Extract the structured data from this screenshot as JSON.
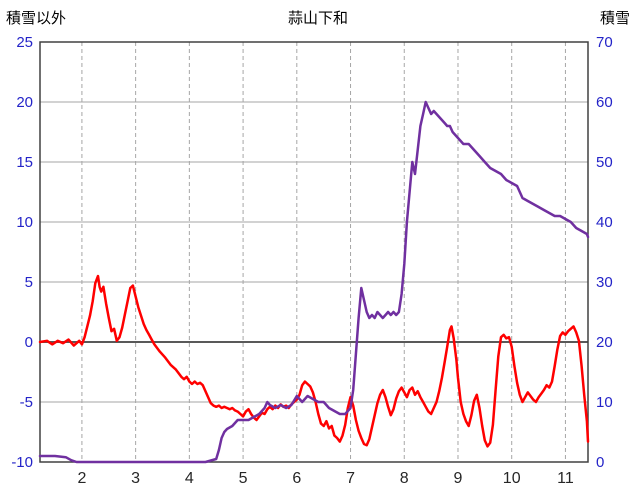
{
  "chart_data": {
    "type": "line",
    "title": "蒜山下和",
    "left_axis_title": "積雪以外",
    "right_axis_title": "積雪",
    "x_range": [
      1.22,
      11.42
    ],
    "x_ticks": [
      2,
      3,
      4,
      5,
      6,
      7,
      8,
      9,
      10,
      11
    ],
    "left_axis": {
      "range": [
        -10,
        25
      ],
      "ticks": [
        -10,
        -5,
        0,
        5,
        10,
        15,
        20,
        25
      ]
    },
    "right_axis": {
      "range": [
        0,
        70
      ],
      "ticks": [
        0,
        10,
        20,
        30,
        40,
        50,
        60,
        70
      ]
    },
    "grid": {
      "horizontal": "solid",
      "vertical": "dashed",
      "zero_line_emphasis": true
    },
    "legend": "none",
    "colors": {
      "temperature": "#FF0000",
      "snow": "#7030A0",
      "grid": "#A6A6A6",
      "zero_line": "#595959",
      "border": "#404040",
      "tick_label": "#2424C8",
      "x_label": "#262626",
      "title": "#000000"
    },
    "series": [
      {
        "name": "積雪以外",
        "axis": "left",
        "color_key": "temperature",
        "points": [
          [
            1.22,
            0
          ],
          [
            1.35,
            0.1
          ],
          [
            1.45,
            -0.2
          ],
          [
            1.55,
            0.1
          ],
          [
            1.65,
            -0.1
          ],
          [
            1.75,
            0.2
          ],
          [
            1.85,
            -0.3
          ],
          [
            1.95,
            0.1
          ],
          [
            2.0,
            -0.2
          ],
          [
            2.05,
            0.4
          ],
          [
            2.1,
            1.3
          ],
          [
            2.15,
            2.2
          ],
          [
            2.2,
            3.4
          ],
          [
            2.25,
            4.9
          ],
          [
            2.3,
            5.5
          ],
          [
            2.33,
            4.6
          ],
          [
            2.36,
            4.2
          ],
          [
            2.4,
            4.6
          ],
          [
            2.45,
            3.2
          ],
          [
            2.5,
            2.0
          ],
          [
            2.55,
            0.9
          ],
          [
            2.6,
            1.1
          ],
          [
            2.65,
            0.1
          ],
          [
            2.7,
            0.4
          ],
          [
            2.75,
            1.2
          ],
          [
            2.8,
            2.3
          ],
          [
            2.85,
            3.4
          ],
          [
            2.9,
            4.5
          ],
          [
            2.95,
            4.7
          ],
          [
            3.0,
            3.8
          ],
          [
            3.05,
            2.9
          ],
          [
            3.1,
            2.2
          ],
          [
            3.15,
            1.5
          ],
          [
            3.2,
            1.0
          ],
          [
            3.25,
            0.6
          ],
          [
            3.3,
            0.2
          ],
          [
            3.35,
            -0.2
          ],
          [
            3.45,
            -0.8
          ],
          [
            3.55,
            -1.3
          ],
          [
            3.65,
            -1.9
          ],
          [
            3.75,
            -2.3
          ],
          [
            3.85,
            -2.9
          ],
          [
            3.9,
            -3.1
          ],
          [
            3.95,
            -2.9
          ],
          [
            4.0,
            -3.3
          ],
          [
            4.05,
            -3.5
          ],
          [
            4.1,
            -3.3
          ],
          [
            4.15,
            -3.5
          ],
          [
            4.2,
            -3.4
          ],
          [
            4.25,
            -3.6
          ],
          [
            4.4,
            -5.1
          ],
          [
            4.45,
            -5.3
          ],
          [
            4.5,
            -5.4
          ],
          [
            4.55,
            -5.3
          ],
          [
            4.6,
            -5.5
          ],
          [
            4.65,
            -5.4
          ],
          [
            4.7,
            -5.5
          ],
          [
            4.75,
            -5.6
          ],
          [
            4.8,
            -5.5
          ],
          [
            4.85,
            -5.7
          ],
          [
            4.9,
            -5.8
          ],
          [
            4.95,
            -6.0
          ],
          [
            5.0,
            -6.2
          ],
          [
            5.05,
            -5.8
          ],
          [
            5.1,
            -5.6
          ],
          [
            5.15,
            -6.0
          ],
          [
            5.2,
            -6.3
          ],
          [
            5.25,
            -6.5
          ],
          [
            5.3,
            -6.2
          ],
          [
            5.35,
            -5.9
          ],
          [
            5.4,
            -6.0
          ],
          [
            5.45,
            -5.6
          ],
          [
            5.5,
            -5.4
          ],
          [
            5.55,
            -5.6
          ],
          [
            5.6,
            -5.3
          ],
          [
            5.65,
            -5.5
          ],
          [
            5.7,
            -5.2
          ],
          [
            5.75,
            -5.4
          ],
          [
            5.8,
            -5.3
          ],
          [
            5.85,
            -5.5
          ],
          [
            5.9,
            -5.2
          ],
          [
            5.95,
            -5.0
          ],
          [
            6.0,
            -4.8
          ],
          [
            6.05,
            -4.4
          ],
          [
            6.1,
            -3.6
          ],
          [
            6.15,
            -3.3
          ],
          [
            6.2,
            -3.5
          ],
          [
            6.25,
            -3.7
          ],
          [
            6.3,
            -4.2
          ],
          [
            6.35,
            -5.0
          ],
          [
            6.4,
            -6.0
          ],
          [
            6.45,
            -6.8
          ],
          [
            6.5,
            -7.0
          ],
          [
            6.55,
            -6.6
          ],
          [
            6.6,
            -7.2
          ],
          [
            6.65,
            -7.0
          ],
          [
            6.7,
            -7.8
          ],
          [
            6.75,
            -8.0
          ],
          [
            6.8,
            -8.3
          ],
          [
            6.85,
            -7.8
          ],
          [
            6.9,
            -6.9
          ],
          [
            6.95,
            -5.5
          ],
          [
            7.0,
            -4.6
          ],
          [
            7.05,
            -5.3
          ],
          [
            7.1,
            -6.5
          ],
          [
            7.15,
            -7.4
          ],
          [
            7.2,
            -8.0
          ],
          [
            7.25,
            -8.5
          ],
          [
            7.3,
            -8.6
          ],
          [
            7.35,
            -8.1
          ],
          [
            7.4,
            -7.1
          ],
          [
            7.45,
            -6.1
          ],
          [
            7.5,
            -5.1
          ],
          [
            7.55,
            -4.4
          ],
          [
            7.6,
            -4.0
          ],
          [
            7.65,
            -4.6
          ],
          [
            7.7,
            -5.4
          ],
          [
            7.75,
            -6.1
          ],
          [
            7.8,
            -5.6
          ],
          [
            7.85,
            -4.7
          ],
          [
            7.9,
            -4.1
          ],
          [
            7.95,
            -3.8
          ],
          [
            8.0,
            -4.2
          ],
          [
            8.05,
            -4.6
          ],
          [
            8.1,
            -4.0
          ],
          [
            8.15,
            -3.8
          ],
          [
            8.2,
            -4.4
          ],
          [
            8.25,
            -4.1
          ],
          [
            8.3,
            -4.6
          ],
          [
            8.35,
            -5.0
          ],
          [
            8.4,
            -5.4
          ],
          [
            8.45,
            -5.8
          ],
          [
            8.5,
            -6.0
          ],
          [
            8.55,
            -5.5
          ],
          [
            8.6,
            -5.0
          ],
          [
            8.65,
            -4.1
          ],
          [
            8.7,
            -3.0
          ],
          [
            8.75,
            -1.7
          ],
          [
            8.8,
            -0.4
          ],
          [
            8.85,
            1.0
          ],
          [
            8.88,
            1.3
          ],
          [
            8.92,
            0.3
          ],
          [
            8.97,
            -1.5
          ],
          [
            9.0,
            -3.0
          ],
          [
            9.05,
            -5.0
          ],
          [
            9.1,
            -6.0
          ],
          [
            9.15,
            -6.6
          ],
          [
            9.2,
            -7.0
          ],
          [
            9.25,
            -6.1
          ],
          [
            9.3,
            -4.9
          ],
          [
            9.35,
            -4.4
          ],
          [
            9.4,
            -5.5
          ],
          [
            9.45,
            -7.0
          ],
          [
            9.5,
            -8.2
          ],
          [
            9.55,
            -8.7
          ],
          [
            9.6,
            -8.4
          ],
          [
            9.65,
            -6.9
          ],
          [
            9.7,
            -4.0
          ],
          [
            9.75,
            -1.2
          ],
          [
            9.8,
            0.4
          ],
          [
            9.85,
            0.6
          ],
          [
            9.9,
            0.3
          ],
          [
            9.95,
            0.4
          ],
          [
            10.0,
            -0.4
          ],
          [
            10.05,
            -2.0
          ],
          [
            10.1,
            -3.4
          ],
          [
            10.15,
            -4.4
          ],
          [
            10.2,
            -5.0
          ],
          [
            10.25,
            -4.6
          ],
          [
            10.3,
            -4.2
          ],
          [
            10.35,
            -4.5
          ],
          [
            10.4,
            -4.8
          ],
          [
            10.45,
            -5.0
          ],
          [
            10.5,
            -4.6
          ],
          [
            10.55,
            -4.3
          ],
          [
            10.6,
            -4.0
          ],
          [
            10.65,
            -3.6
          ],
          [
            10.7,
            -3.8
          ],
          [
            10.75,
            -3.3
          ],
          [
            10.8,
            -2.0
          ],
          [
            10.85,
            -0.6
          ],
          [
            10.9,
            0.5
          ],
          [
            10.95,
            0.8
          ],
          [
            11.0,
            0.6
          ],
          [
            11.05,
            0.9
          ],
          [
            11.1,
            1.1
          ],
          [
            11.15,
            1.3
          ],
          [
            11.2,
            0.8
          ],
          [
            11.25,
            0.1
          ],
          [
            11.3,
            -2.0
          ],
          [
            11.35,
            -4.4
          ],
          [
            11.4,
            -6.6
          ],
          [
            11.42,
            -8.3
          ]
        ]
      },
      {
        "name": "積雪",
        "axis": "right",
        "color_key": "snow",
        "points": [
          [
            1.22,
            1.0
          ],
          [
            1.5,
            1.0
          ],
          [
            1.7,
            0.8
          ],
          [
            1.8,
            0.3
          ],
          [
            1.9,
            0
          ],
          [
            2.5,
            0
          ],
          [
            3.5,
            0
          ],
          [
            4.3,
            0
          ],
          [
            4.5,
            0.5
          ],
          [
            4.55,
            2.0
          ],
          [
            4.6,
            4.0
          ],
          [
            4.65,
            5.0
          ],
          [
            4.7,
            5.5
          ],
          [
            4.8,
            6.0
          ],
          [
            4.9,
            7.0
          ],
          [
            5.0,
            7.0
          ],
          [
            5.1,
            7.0
          ],
          [
            5.2,
            7.5
          ],
          [
            5.3,
            8.0
          ],
          [
            5.35,
            8.5
          ],
          [
            5.4,
            9.0
          ],
          [
            5.45,
            10.0
          ],
          [
            5.5,
            9.5
          ],
          [
            5.6,
            9.0
          ],
          [
            5.7,
            9.5
          ],
          [
            5.8,
            9.0
          ],
          [
            5.9,
            9.5
          ],
          [
            6.0,
            11.0
          ],
          [
            6.05,
            10.5
          ],
          [
            6.1,
            10.0
          ],
          [
            6.15,
            10.5
          ],
          [
            6.2,
            11.0
          ],
          [
            6.3,
            10.5
          ],
          [
            6.4,
            10.0
          ],
          [
            6.5,
            10.0
          ],
          [
            6.6,
            9.0
          ],
          [
            6.7,
            8.5
          ],
          [
            6.8,
            8.0
          ],
          [
            6.9,
            8.0
          ],
          [
            7.0,
            9.0
          ],
          [
            7.05,
            12.0
          ],
          [
            7.1,
            18.0
          ],
          [
            7.15,
            24.0
          ],
          [
            7.2,
            29.0
          ],
          [
            7.25,
            27.0
          ],
          [
            7.3,
            25.0
          ],
          [
            7.35,
            24.0
          ],
          [
            7.4,
            24.5
          ],
          [
            7.45,
            24.0
          ],
          [
            7.5,
            25.0
          ],
          [
            7.55,
            24.5
          ],
          [
            7.6,
            24.0
          ],
          [
            7.65,
            24.5
          ],
          [
            7.7,
            25.0
          ],
          [
            7.75,
            24.5
          ],
          [
            7.8,
            25.0
          ],
          [
            7.85,
            24.5
          ],
          [
            7.9,
            25.0
          ],
          [
            7.95,
            28.0
          ],
          [
            8.0,
            33.0
          ],
          [
            8.05,
            40.0
          ],
          [
            8.1,
            45.0
          ],
          [
            8.15,
            50.0
          ],
          [
            8.2,
            48.0
          ],
          [
            8.25,
            52.0
          ],
          [
            8.3,
            56.0
          ],
          [
            8.35,
            58.0
          ],
          [
            8.4,
            60.0
          ],
          [
            8.45,
            59.0
          ],
          [
            8.5,
            58.0
          ],
          [
            8.55,
            58.5
          ],
          [
            8.6,
            58.0
          ],
          [
            8.65,
            57.5
          ],
          [
            8.7,
            57.0
          ],
          [
            8.75,
            56.5
          ],
          [
            8.8,
            56.0
          ],
          [
            8.85,
            56.0
          ],
          [
            8.9,
            55.0
          ],
          [
            8.95,
            54.5
          ],
          [
            9.0,
            54.0
          ],
          [
            9.05,
            53.5
          ],
          [
            9.1,
            53.0
          ],
          [
            9.15,
            53.0
          ],
          [
            9.2,
            53.0
          ],
          [
            9.25,
            52.5
          ],
          [
            9.3,
            52.0
          ],
          [
            9.4,
            51.0
          ],
          [
            9.5,
            50.0
          ],
          [
            9.6,
            49.0
          ],
          [
            9.7,
            48.5
          ],
          [
            9.8,
            48.0
          ],
          [
            9.9,
            47.0
          ],
          [
            10.0,
            46.5
          ],
          [
            10.1,
            46.0
          ],
          [
            10.15,
            45.0
          ],
          [
            10.2,
            44.0
          ],
          [
            10.3,
            43.5
          ],
          [
            10.4,
            43.0
          ],
          [
            10.5,
            42.5
          ],
          [
            10.6,
            42.0
          ],
          [
            10.7,
            41.5
          ],
          [
            10.8,
            41.0
          ],
          [
            10.9,
            41.0
          ],
          [
            11.0,
            40.5
          ],
          [
            11.1,
            40.0
          ],
          [
            11.2,
            39.0
          ],
          [
            11.3,
            38.5
          ],
          [
            11.4,
            38.0
          ],
          [
            11.42,
            37.5
          ]
        ]
      }
    ]
  }
}
